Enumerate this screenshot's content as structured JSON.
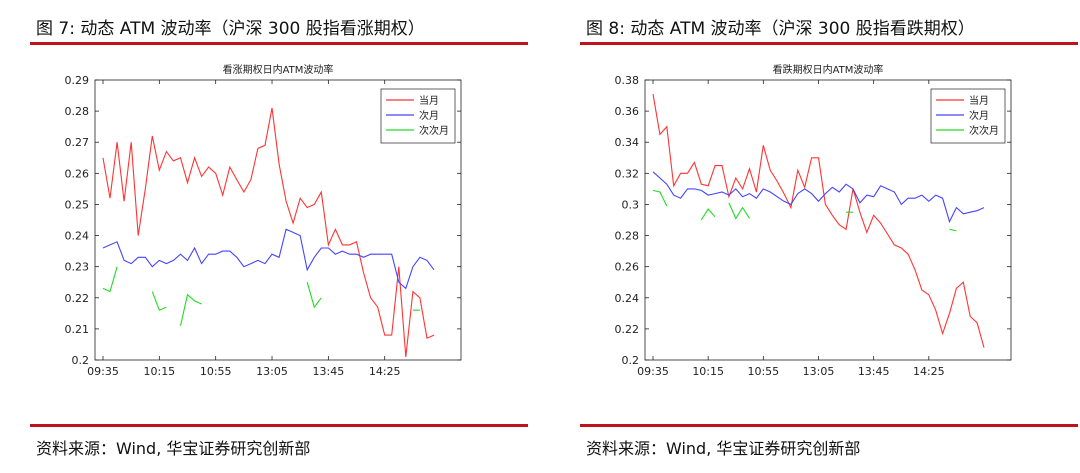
{
  "panels": [
    {
      "figure_title": "图 7: 动态 ATM 波动率（沪深 300 股指看涨期权）",
      "source": "资料来源：Wind, 华宝证券研究创新部"
    },
    {
      "figure_title": "图 8: 动态 ATM 波动率（沪深 300 股指看跌期权）",
      "source": "资料来源：Wind, 华宝证券研究创新部"
    }
  ],
  "colors": {
    "rule": "#c0121e",
    "s1": "#ff3333",
    "s2": "#4444ff",
    "s3": "#22dd22"
  },
  "chart_data": [
    {
      "type": "line",
      "title": "看涨期权日内ATM波动率",
      "x_ticks": [
        "09:35",
        "10:15",
        "10:55",
        "13:05",
        "13:45",
        "14:25"
      ],
      "x_tick_index": [
        0,
        8,
        16,
        24,
        32,
        40
      ],
      "ylim": [
        0.2,
        0.29
      ],
      "y_ticks": [
        "0.2",
        "0.21",
        "0.22",
        "0.23",
        "0.24",
        "0.25",
        "0.26",
        "0.27",
        "0.28",
        "0.29"
      ],
      "legend": [
        "当月",
        "次月",
        "次次月"
      ],
      "legend_position": "top-right",
      "series": [
        {
          "name": "当月",
          "values": [
            0.265,
            0.252,
            0.27,
            0.251,
            0.27,
            0.24,
            0.255,
            0.272,
            0.261,
            0.267,
            0.264,
            0.265,
            0.257,
            0.265,
            0.259,
            0.262,
            0.26,
            0.253,
            0.262,
            0.258,
            0.254,
            0.258,
            0.268,
            0.269,
            0.281,
            0.263,
            0.251,
            0.244,
            0.252,
            0.249,
            0.25,
            0.254,
            0.237,
            0.242,
            0.237,
            0.237,
            0.238,
            0.228,
            0.22,
            0.217,
            0.208,
            0.208,
            0.23,
            0.201,
            0.222,
            0.22,
            0.207,
            0.208
          ]
        },
        {
          "name": "次月",
          "values": [
            0.236,
            0.237,
            0.238,
            0.232,
            0.231,
            0.233,
            0.233,
            0.23,
            0.232,
            0.231,
            0.232,
            0.234,
            0.232,
            0.236,
            0.231,
            0.234,
            0.234,
            0.235,
            0.235,
            0.233,
            0.23,
            0.231,
            0.232,
            0.231,
            0.234,
            0.233,
            0.242,
            0.241,
            0.24,
            0.229,
            0.233,
            0.236,
            0.236,
            0.234,
            0.235,
            0.234,
            0.234,
            0.233,
            0.234,
            0.234,
            0.234,
            0.234,
            0.225,
            0.223,
            0.23,
            0.233,
            0.232,
            0.229
          ]
        },
        {
          "name": "次次月",
          "segments": [
            {
              "start": 0,
              "values": [
                0.223,
                0.222,
                0.23
              ]
            },
            {
              "start": 7,
              "values": [
                0.222,
                0.216,
                0.217
              ]
            },
            {
              "start": 11,
              "values": [
                0.211,
                0.221,
                0.219,
                0.218
              ]
            },
            {
              "start": 29,
              "values": [
                0.225,
                0.217,
                0.22
              ]
            },
            {
              "start": 44,
              "values": [
                0.216,
                0.216
              ]
            }
          ]
        }
      ]
    },
    {
      "type": "line",
      "title": "看跌期权日内ATM波动率",
      "x_ticks": [
        "09:35",
        "10:15",
        "10:55",
        "13:05",
        "13:45",
        "14:25"
      ],
      "x_tick_index": [
        0,
        8,
        16,
        24,
        32,
        40
      ],
      "ylim": [
        0.2,
        0.38
      ],
      "y_ticks": [
        "0.2",
        "0.22",
        "0.24",
        "0.26",
        "0.28",
        "0.3",
        "0.32",
        "0.34",
        "0.36",
        "0.38"
      ],
      "legend": [
        "当月",
        "次月",
        "次次月"
      ],
      "legend_position": "top-right",
      "series": [
        {
          "name": "当月",
          "values": [
            0.371,
            0.345,
            0.35,
            0.312,
            0.32,
            0.32,
            0.327,
            0.313,
            0.312,
            0.325,
            0.325,
            0.305,
            0.317,
            0.31,
            0.323,
            0.308,
            0.338,
            0.322,
            0.315,
            0.307,
            0.298,
            0.322,
            0.311,
            0.33,
            0.33,
            0.3,
            0.293,
            0.287,
            0.284,
            0.31,
            0.295,
            0.282,
            0.293,
            0.288,
            0.281,
            0.274,
            0.272,
            0.268,
            0.258,
            0.245,
            0.242,
            0.232,
            0.217,
            0.23,
            0.246,
            0.25,
            0.228,
            0.224,
            0.208
          ]
        },
        {
          "name": "次月",
          "values": [
            0.321,
            0.317,
            0.313,
            0.306,
            0.304,
            0.31,
            0.31,
            0.309,
            0.306,
            0.307,
            0.308,
            0.306,
            0.31,
            0.305,
            0.307,
            0.304,
            0.31,
            0.308,
            0.305,
            0.302,
            0.3,
            0.307,
            0.31,
            0.307,
            0.302,
            0.307,
            0.311,
            0.308,
            0.313,
            0.31,
            0.301,
            0.306,
            0.305,
            0.312,
            0.31,
            0.308,
            0.3,
            0.304,
            0.304,
            0.306,
            0.302,
            0.306,
            0.304,
            0.289,
            0.298,
            0.294,
            0.295,
            0.296,
            0.298
          ]
        },
        {
          "name": "次次月",
          "segments": [
            {
              "start": 0,
              "values": [
                0.309,
                0.308,
                0.299
              ]
            },
            {
              "start": 7,
              "values": [
                0.29,
                0.297,
                0.292
              ]
            },
            {
              "start": 11,
              "values": [
                0.301,
                0.291,
                0.298,
                0.291
              ]
            },
            {
              "start": 28,
              "values": [
                0.295,
                0.295
              ]
            },
            {
              "start": 43,
              "values": [
                0.284,
                0.283
              ]
            }
          ]
        }
      ]
    }
  ]
}
